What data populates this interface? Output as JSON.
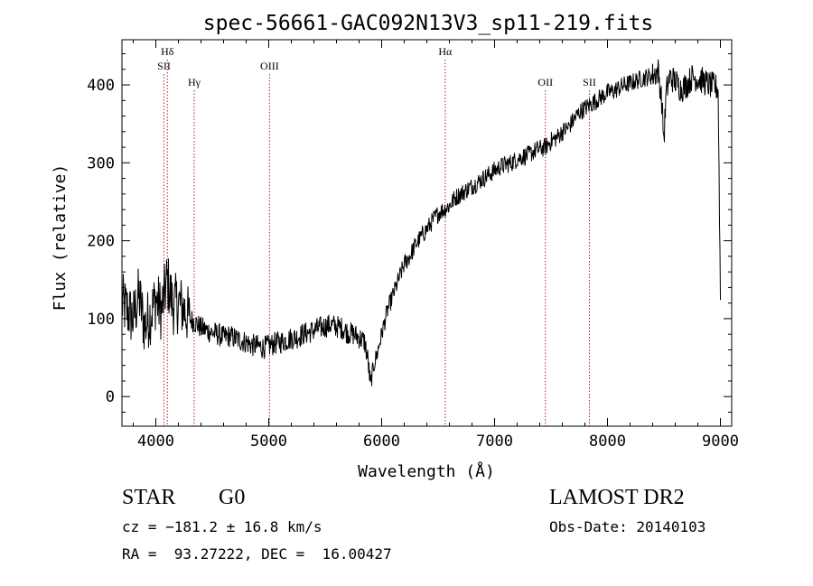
{
  "chart_data": {
    "type": "line",
    "title": "spec-56661-GAC092N13V3_sp11-219.fits",
    "xlabel": "Wavelength (Å)",
    "ylabel": "Flux (relative)",
    "xlim": [
      3700,
      9100
    ],
    "ylim": [
      -38,
      458
    ],
    "xticks": [
      4000,
      5000,
      6000,
      7000,
      8000,
      9000
    ],
    "yticks": [
      0,
      100,
      200,
      300,
      400
    ],
    "grid": false,
    "legend": "none",
    "series": [
      {
        "x": [
          3700,
          3750,
          3800,
          3850,
          3900,
          3950,
          4000,
          4050,
          4100,
          4150,
          4200,
          4250,
          4300,
          4350,
          4400,
          4450,
          4500,
          4550,
          4600,
          4650,
          4700,
          4750,
          4800,
          4850,
          4900,
          4950,
          5000,
          5050,
          5100,
          5150,
          5200,
          5250,
          5300,
          5350,
          5400,
          5450,
          5500,
          5550,
          5600,
          5650,
          5700,
          5750,
          5800,
          5850,
          5880,
          5900,
          5930,
          5960,
          6000,
          6050,
          6100,
          6150,
          6200,
          6250,
          6300,
          6350,
          6400,
          6450,
          6500,
          6550,
          6600,
          6650,
          6700,
          6750,
          6800,
          6850,
          6900,
          6950,
          7000,
          7050,
          7100,
          7150,
          7200,
          7250,
          7300,
          7350,
          7400,
          7450,
          7500,
          7550,
          7600,
          7650,
          7700,
          7750,
          7800,
          7850,
          7900,
          7950,
          8000,
          8050,
          8100,
          8150,
          8200,
          8250,
          8300,
          8350,
          8400,
          8450,
          8480,
          8500,
          8520,
          8550,
          8600,
          8650,
          8700,
          8750,
          8800,
          8850,
          8900,
          8950,
          8980,
          9000
        ],
        "y": [
          120,
          110,
          100,
          130,
          90,
          105,
          125,
          110,
          150,
          118,
          120,
          112,
          100,
          95,
          88,
          85,
          82,
          80,
          76,
          78,
          75,
          72,
          70,
          66,
          65,
          63,
          65,
          68,
          70,
          72,
          75,
          76,
          80,
          82,
          85,
          88,
          90,
          92,
          90,
          88,
          82,
          80,
          76,
          70,
          45,
          15,
          40,
          55,
          80,
          110,
          130,
          150,
          170,
          180,
          195,
          205,
          215,
          225,
          235,
          240,
          245,
          255,
          260,
          265,
          270,
          275,
          280,
          285,
          290,
          295,
          298,
          300,
          305,
          308,
          310,
          315,
          318,
          320,
          328,
          332,
          340,
          345,
          355,
          365,
          370,
          375,
          380,
          385,
          390,
          392,
          396,
          400,
          402,
          405,
          408,
          410,
          412,
          418,
          380,
          330,
          390,
          410,
          405,
          395,
          400,
          410,
          408,
          405,
          400,
          398,
          395,
          130
        ]
      }
    ],
    "annotations": [
      {
        "label": "Hδ",
        "x": 4102,
        "row": 1
      },
      {
        "label": "SII",
        "x": 4072,
        "row": 2
      },
      {
        "label": "Hγ",
        "x": 4340,
        "row": 3
      },
      {
        "label": "OIII",
        "x": 5007,
        "row": 2
      },
      {
        "label": "Hα",
        "x": 6563,
        "row": 1
      },
      {
        "label": "OII",
        "x": 7450,
        "row": 3
      },
      {
        "label": "SII",
        "x": 7840,
        "row": 3
      }
    ],
    "colors": {
      "spectrum": "#000000",
      "lines": "#b22222",
      "axes": "#000000"
    }
  },
  "info": {
    "object_class": "STAR",
    "subclass": "G0",
    "survey": "LAMOST DR2",
    "cz": "cz = −181.2 ± 16.8 km/s",
    "obs_date": "Obs-Date: 20140103",
    "coords": "RA =  93.27222, DEC =  16.00427"
  }
}
